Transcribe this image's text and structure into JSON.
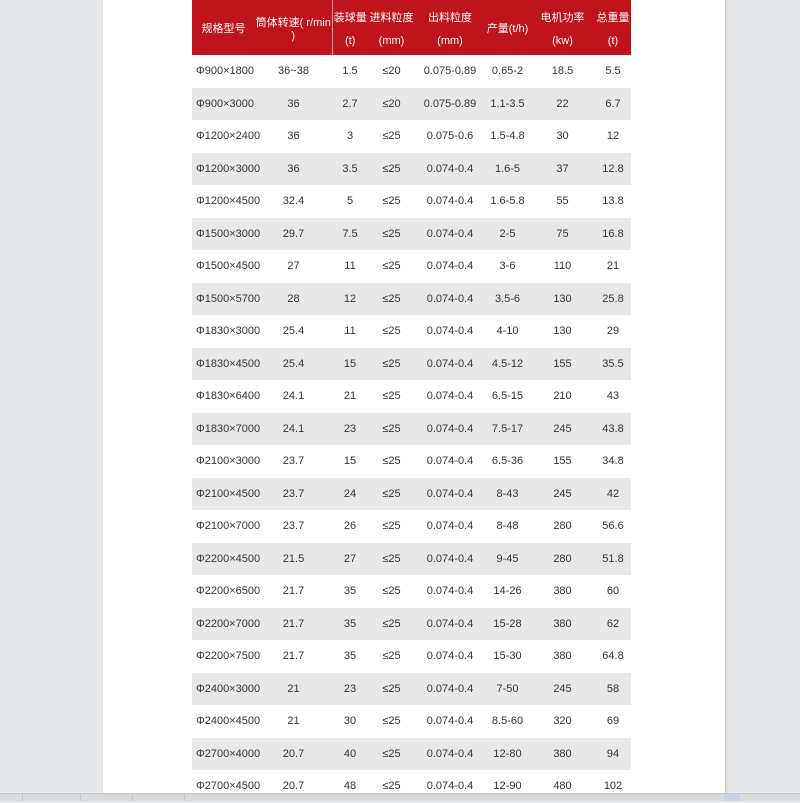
{
  "header": [
    {
      "l1": "规格型号",
      "l2": ""
    },
    {
      "l1": "筒体转速( r/min )",
      "l2": ""
    },
    {
      "l1": "装球量",
      "l2": "(t)"
    },
    {
      "l1": "进料粒度",
      "l2": "(mm)"
    },
    {
      "l1": "出料粒度",
      "l2": "(mm)"
    },
    {
      "l1": "产量(t/h)",
      "l2": ""
    },
    {
      "l1": "电机功率",
      "l2": "(kw)"
    },
    {
      "l1": "总重量",
      "l2": "(t)"
    }
  ],
  "rows": [
    [
      "Φ900×1800",
      "36~38",
      "1.5",
      "≤20",
      "0.075-0.89",
      "0.65-2",
      "18.5",
      "5.5"
    ],
    [
      "Φ900×3000",
      "36",
      "2.7",
      "≤20",
      "0.075-0.89",
      "1.1-3.5",
      "22",
      "6.7"
    ],
    [
      "Φ1200×2400",
      "36",
      "3",
      "≤25",
      "0.075-0.6",
      "1.5-4.8",
      "30",
      "12"
    ],
    [
      "Φ1200×3000",
      "36",
      "3.5",
      "≤25",
      "0.074-0.4",
      "1.6-5",
      "37",
      "12.8"
    ],
    [
      "Φ1200×4500",
      "32.4",
      "5",
      "≤25",
      "0.074-0.4",
      "1.6-5.8",
      "55",
      "13.8"
    ],
    [
      "Φ1500×3000",
      "29.7",
      "7.5",
      "≤25",
      "0.074-0.4",
      "2-5",
      "75",
      "16.8"
    ],
    [
      "Φ1500×4500",
      "27",
      "11",
      "≤25",
      "0.074-0.4",
      "3-6",
      "110",
      "21"
    ],
    [
      "Φ1500×5700",
      "28",
      "12",
      "≤25",
      "0.074-0.4",
      "3.5-6",
      "130",
      "25.8"
    ],
    [
      "Φ1830×3000",
      "25.4",
      "11",
      "≤25",
      "0.074-0.4",
      "4-10",
      "130",
      "29"
    ],
    [
      "Φ1830×4500",
      "25.4",
      "15",
      "≤25",
      "0.074-0.4",
      "4.5-12",
      "155",
      "35.5"
    ],
    [
      "Φ1830×6400",
      "24.1",
      "21",
      "≤25",
      "0.074-0.4",
      "6.5-15",
      "210",
      "43"
    ],
    [
      "Φ1830×7000",
      "24.1",
      "23",
      "≤25",
      "0.074-0.4",
      "7.5-17",
      "245",
      "43.8"
    ],
    [
      "Φ2100×3000",
      "23.7",
      "15",
      "≤25",
      "0.074-0.4",
      "6.5-36",
      "155",
      "34.8"
    ],
    [
      "Φ2100×4500",
      "23.7",
      "24",
      "≤25",
      "0.074-0.4",
      "8-43",
      "245",
      "42"
    ],
    [
      "Φ2100×7000",
      "23.7",
      "26",
      "≤25",
      "0.074-0.4",
      "8-48",
      "280",
      "56.6"
    ],
    [
      "Φ2200×4500",
      "21.5",
      "27",
      "≤25",
      "0.074-0.4",
      "9-45",
      "280",
      "51.8"
    ],
    [
      "Φ2200×6500",
      "21.7",
      "35",
      "≤25",
      "0.074-0.4",
      "14-26",
      "380",
      "60"
    ],
    [
      "Φ2200×7000",
      "21.7",
      "35",
      "≤25",
      "0.074-0.4",
      "15-28",
      "380",
      "62"
    ],
    [
      "Φ2200×7500",
      "21.7",
      "35",
      "≤25",
      "0.074-0.4",
      "15-30",
      "380",
      "64.8"
    ],
    [
      "Φ2400×3000",
      "21",
      "23",
      "≤25",
      "0.074-0.4",
      "7-50",
      "245",
      "58"
    ],
    [
      "Φ2400×4500",
      "21",
      "30",
      "≤25",
      "0.074-0.4",
      "8.5-60",
      "320",
      "69"
    ],
    [
      "Φ2700×4000",
      "20.7",
      "40",
      "≤25",
      "0.074-0.4",
      "12-80",
      "380",
      "94"
    ],
    [
      "Φ2700×4500",
      "20.7",
      "48",
      "≤25",
      "0.074-0.4",
      "12-90",
      "480",
      "102"
    ]
  ],
  "colors": {
    "header_bg": "#c0141c",
    "alt_row": "#e8e8e8"
  }
}
